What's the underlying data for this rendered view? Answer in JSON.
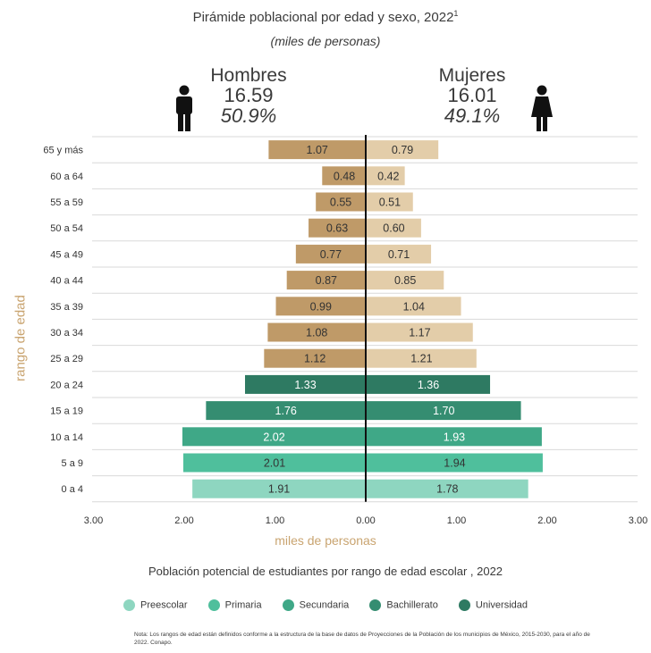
{
  "title": "Pirámide poblacional por edad y sexo, 2022",
  "title_sup": "1",
  "subtitle": "(miles de personas)",
  "men": {
    "label": "Hombres",
    "total": "16.59",
    "pct": "50.9%",
    "icon": "man-icon"
  },
  "women": {
    "label": "Mujeres",
    "total": "16.01",
    "pct": "49.1%",
    "icon": "woman-icon"
  },
  "chart_data": {
    "type": "bar",
    "orientation": "horizontal-population-pyramid",
    "categories": [
      "65 y más",
      "60 a 64",
      "55 a 59",
      "50 a 54",
      "45 a 49",
      "40 a 44",
      "35 a 39",
      "30 a 34",
      "25 a 29",
      "20 a 24",
      "15 a 19",
      "10 a 14",
      "5 a 9",
      "0 a 4"
    ],
    "series": [
      {
        "name": "Hombres",
        "values": [
          1.07,
          0.48,
          0.55,
          0.63,
          0.77,
          0.87,
          0.99,
          1.08,
          1.12,
          1.33,
          1.76,
          2.02,
          2.01,
          1.91
        ],
        "labels": [
          "1.07",
          "0.48",
          "0.55",
          "0.63",
          "0.77",
          "0.87",
          "0.99",
          "1.08",
          "1.12",
          "1.33",
          "1.76",
          "2.02",
          "2.01",
          "1.91"
        ]
      },
      {
        "name": "Mujeres",
        "values": [
          0.79,
          0.42,
          0.51,
          0.6,
          0.71,
          0.85,
          1.04,
          1.17,
          1.21,
          1.36,
          1.7,
          1.93,
          1.94,
          1.78
        ],
        "labels": [
          "0.79",
          "0.42",
          "0.51",
          "0.60",
          "0.71",
          "0.85",
          "1.04",
          "1.17",
          "1.21",
          "1.36",
          "1.70",
          "1.93",
          "1.94",
          "1.78"
        ]
      }
    ],
    "bar_colors_men": [
      "#bf9a68",
      "#bf9a68",
      "#bf9a68",
      "#bf9a68",
      "#bf9a68",
      "#bf9a68",
      "#bf9a68",
      "#bf9a68",
      "#bf9a68",
      "#2e7a62",
      "#358d71",
      "#3fa887",
      "#4fbf9c",
      "#8ed6c0"
    ],
    "bar_colors_women": [
      "#e3cda9",
      "#e3cda9",
      "#e3cda9",
      "#e3cda9",
      "#e3cda9",
      "#e3cda9",
      "#e3cda9",
      "#e3cda9",
      "#e3cda9",
      "#2e7a62",
      "#358d71",
      "#3fa887",
      "#4fbf9c",
      "#8ed6c0"
    ],
    "xlim": [
      -3,
      3
    ],
    "xticks": [
      "3.00",
      "2.00",
      "1.00",
      "0.00",
      "1.00",
      "2.00",
      "3.00"
    ],
    "xlabel": "miles de personas",
    "ylabel": "rango de edad",
    "grid": "horizontal"
  },
  "education_title": "Población potencial de estudiantes por rango de edad escolar , 2022",
  "legend": [
    {
      "label": "Preescolar",
      "color": "#8ed6c0"
    },
    {
      "label": "Primaria",
      "color": "#4fbf9c"
    },
    {
      "label": "Secundaria",
      "color": "#3fa887"
    },
    {
      "label": "Bachillerato",
      "color": "#358d71"
    },
    {
      "label": "Universidad",
      "color": "#2e7a62"
    }
  ],
  "note": "Nota: Los rangos de edad están definidos conforme a la estructura de la base de datos de Proyecciones de la Población de los municipios de México, 2015-2030, para el año de 2022. Conapo."
}
